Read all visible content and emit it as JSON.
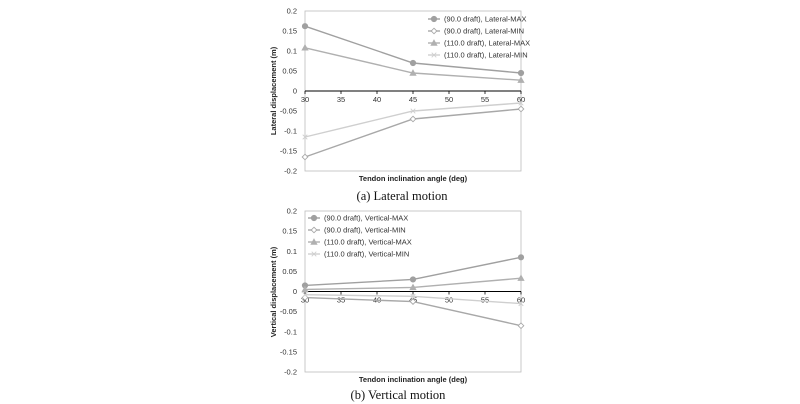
{
  "chart_data": [
    {
      "type": "line",
      "caption": "(a)  Lateral  motion",
      "xlabel": "Tendon inclination angle (deg)",
      "ylabel": "Lateral displacement (m)",
      "x": [
        30,
        45,
        60
      ],
      "xlim": [
        30,
        60
      ],
      "xticks": [
        "30",
        "35",
        "40",
        "45",
        "50",
        "55",
        "60"
      ],
      "ylim": [
        -0.2,
        0.2
      ],
      "yticks": [
        "0.2",
        "0.15",
        "0.1",
        "0.05",
        "0",
        "-0.05",
        "-0.1",
        "-0.15",
        "-0.2"
      ],
      "legend_position": "top-right",
      "series": [
        {
          "name": "(90.0 draft), Lateral-MAX",
          "values": [
            0.162,
            0.07,
            0.045
          ],
          "color": "#a0a0a0",
          "marker": "circle"
        },
        {
          "name": "(90.0 draft), Lateral-MIN",
          "values": [
            -0.165,
            -0.07,
            -0.045
          ],
          "color": "#a8a8a8",
          "marker": "diamond"
        },
        {
          "name": "(110.0 draft), Lateral-MAX",
          "values": [
            0.108,
            0.045,
            0.027
          ],
          "color": "#b0b0b0",
          "marker": "triangle"
        },
        {
          "name": "(110.0 draft), Lateral-MIN",
          "values": [
            -0.115,
            -0.05,
            -0.03
          ],
          "color": "#cfcfcf",
          "marker": "cross"
        }
      ]
    },
    {
      "type": "line",
      "caption": "(b)  Vertical  motion",
      "xlabel": "Tendon inclination angle (deg)",
      "ylabel": "Vertical displacement (m)",
      "x": [
        30,
        45,
        60
      ],
      "xlim": [
        30,
        60
      ],
      "xticks": [
        "30",
        "35",
        "40",
        "45",
        "50",
        "55",
        "60"
      ],
      "ylim": [
        -0.2,
        0.2
      ],
      "yticks": [
        "0.2",
        "0.15",
        "0.1",
        "0.05",
        "0",
        "-0.05",
        "-0.1",
        "-0.15",
        "-0.2"
      ],
      "legend_position": "top-left",
      "series": [
        {
          "name": "(90.0 draft), Vertical-MAX",
          "values": [
            0.015,
            0.03,
            0.085
          ],
          "color": "#a0a0a0",
          "marker": "circle"
        },
        {
          "name": "(90.0 draft), Vertical-MIN",
          "values": [
            -0.015,
            -0.025,
            -0.085
          ],
          "color": "#a8a8a8",
          "marker": "diamond"
        },
        {
          "name": "(110.0 draft), Vertical-MAX",
          "values": [
            0.005,
            0.01,
            0.033
          ],
          "color": "#b0b0b0",
          "marker": "triangle"
        },
        {
          "name": "(110.0 draft), Vertical-MIN",
          "values": [
            -0.008,
            -0.012,
            -0.03
          ],
          "color": "#cfcfcf",
          "marker": "cross"
        }
      ]
    }
  ]
}
